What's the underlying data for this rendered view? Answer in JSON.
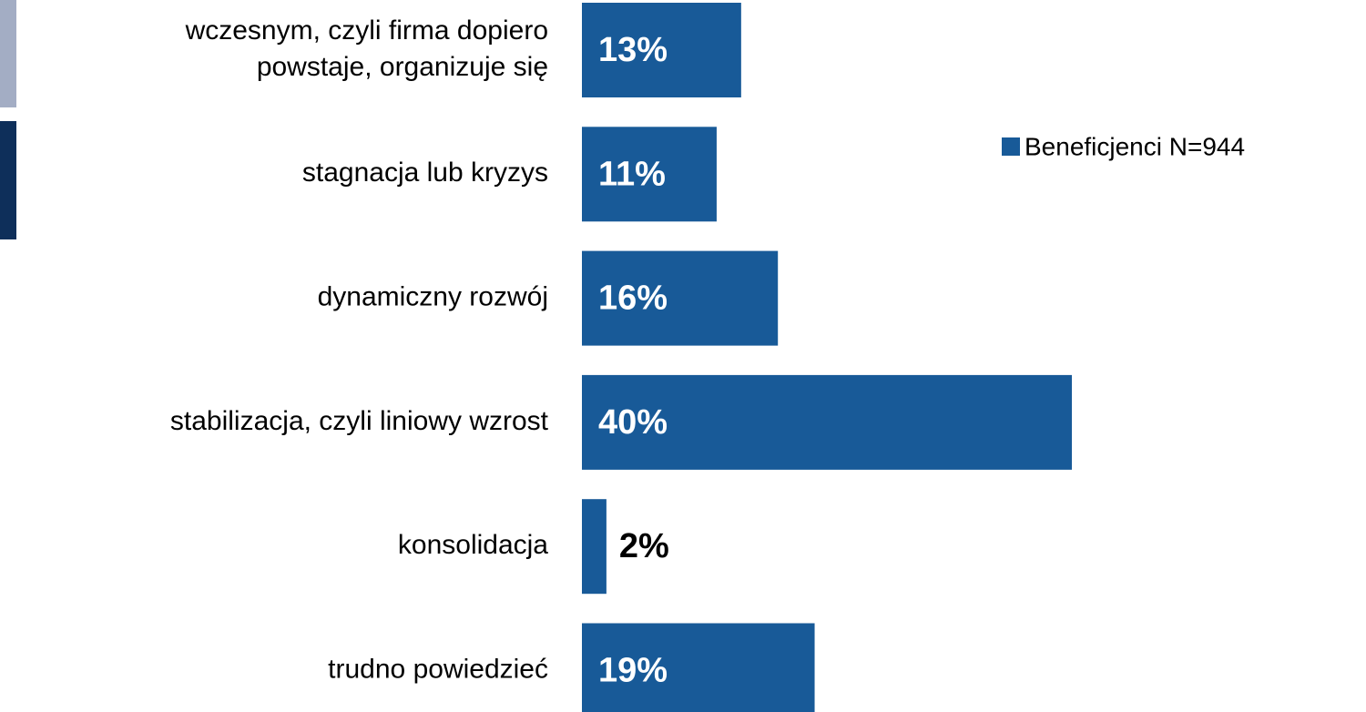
{
  "chart_data": {
    "type": "bar",
    "orientation": "horizontal",
    "categories": [
      "wczesnym, czyli firma dopiero\npowstaje, organizuje się",
      "stagnacja lub kryzys",
      "dynamiczny rozwój",
      "stabilizacja, czyli liniowy wzrost",
      "konsolidacja",
      "trudno powiedzieć"
    ],
    "series": [
      {
        "name": "Beneficjenci N=944",
        "color": "#185a98",
        "values": [
          13,
          11,
          16,
          40,
          2,
          19
        ],
        "value_labels": [
          "13%",
          "11%",
          "16%",
          "40%",
          "2%",
          "19%"
        ]
      }
    ]
  }
}
